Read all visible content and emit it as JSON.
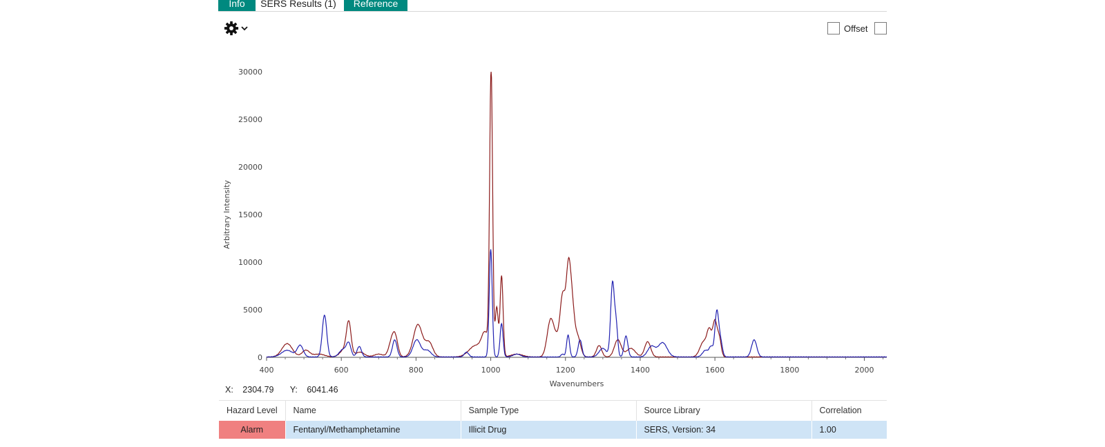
{
  "tabs": [
    {
      "label": "Info",
      "active": false
    },
    {
      "label": "SERS Results  (1)",
      "active": true
    },
    {
      "label": "Reference",
      "active": false
    }
  ],
  "toolbar": {
    "settings_icon": "gear-icon",
    "dropdown_icon": "chevron-down-icon"
  },
  "offset": {
    "label": "Offset",
    "checked": false
  },
  "colors": {
    "accent": "#00897f",
    "sample_line": "#8b1a1a",
    "reference_line": "#2020b0",
    "alarm": "#f08080",
    "row_highlight": "#cfe4f6"
  },
  "chart_data": {
    "type": "line",
    "title": "",
    "xlabel": "Wavenumbers",
    "ylabel": "Arbitrary Intensity",
    "xlim": [
      400,
      2060
    ],
    "ylim": [
      0,
      30000
    ],
    "xticks": [
      400,
      600,
      800,
      1000,
      1200,
      1400,
      1600,
      1800,
      2000
    ],
    "yticks": [
      0,
      5000,
      10000,
      15000,
      20000,
      25000,
      30000
    ],
    "grid": false,
    "series": [
      {
        "color": "#8b1a1a",
        "peaks": [
          [
            455,
            1400,
            14
          ],
          [
            505,
            700,
            10
          ],
          [
            540,
            300,
            15
          ],
          [
            610,
            850,
            12
          ],
          [
            620,
            3200,
            6
          ],
          [
            650,
            500,
            12
          ],
          [
            700,
            300,
            12
          ],
          [
            735,
            1600,
            8
          ],
          [
            745,
            1700,
            7
          ],
          [
            805,
            3400,
            12
          ],
          [
            835,
            1500,
            10
          ],
          [
            960,
            1200,
            18
          ],
          [
            985,
            2200,
            9
          ],
          [
            1001,
            29800,
            4
          ],
          [
            1016,
            5200,
            4
          ],
          [
            1029,
            8500,
            4
          ],
          [
            1070,
            300,
            15
          ],
          [
            1160,
            3800,
            9
          ],
          [
            1178,
            1600,
            9
          ],
          [
            1193,
            6100,
            7
          ],
          [
            1208,
            8600,
            6
          ],
          [
            1218,
            4500,
            6
          ],
          [
            1232,
            2200,
            8
          ],
          [
            1290,
            1200,
            7
          ],
          [
            1340,
            1800,
            9
          ],
          [
            1375,
            900,
            12
          ],
          [
            1420,
            1600,
            8
          ],
          [
            1570,
            1600,
            10
          ],
          [
            1585,
            2400,
            6
          ],
          [
            1600,
            3700,
            6
          ],
          [
            1612,
            1800,
            5
          ]
        ]
      },
      {
        "color": "#2020b0",
        "peaks": [
          [
            455,
            700,
            15
          ],
          [
            490,
            1200,
            8
          ],
          [
            555,
            4400,
            6
          ],
          [
            605,
            800,
            10
          ],
          [
            620,
            1300,
            6
          ],
          [
            648,
            1100,
            6
          ],
          [
            743,
            1800,
            6
          ],
          [
            802,
            1800,
            10
          ],
          [
            830,
            700,
            10
          ],
          [
            935,
            500,
            6
          ],
          [
            1000,
            11300,
            4
          ],
          [
            1029,
            3500,
            4
          ],
          [
            1070,
            300,
            10
          ],
          [
            1192,
            300,
            4
          ],
          [
            1207,
            2300,
            4
          ],
          [
            1239,
            1800,
            5
          ],
          [
            1300,
            900,
            10
          ],
          [
            1326,
            7800,
            5
          ],
          [
            1336,
            3000,
            4
          ],
          [
            1362,
            2200,
            5
          ],
          [
            1430,
            1100,
            10
          ],
          [
            1460,
            1500,
            12
          ],
          [
            1575,
            700,
            8
          ],
          [
            1590,
            1000,
            5
          ],
          [
            1605,
            4700,
            5
          ],
          [
            1615,
            1600,
            5
          ],
          [
            1705,
            1800,
            7
          ]
        ]
      }
    ]
  },
  "readout": {
    "x_label": "X:",
    "x_value": "2304.79",
    "y_label": "Y:",
    "y_value": "6041.46"
  },
  "table": {
    "headers": [
      "Hazard Level",
      "Name",
      "Sample Type",
      "Source Library",
      "Correlation"
    ],
    "rows": [
      [
        "Alarm",
        "Fentanyl/Methamphetamine",
        "Illicit Drug",
        "SERS, Version: 34",
        "1.00"
      ]
    ]
  }
}
